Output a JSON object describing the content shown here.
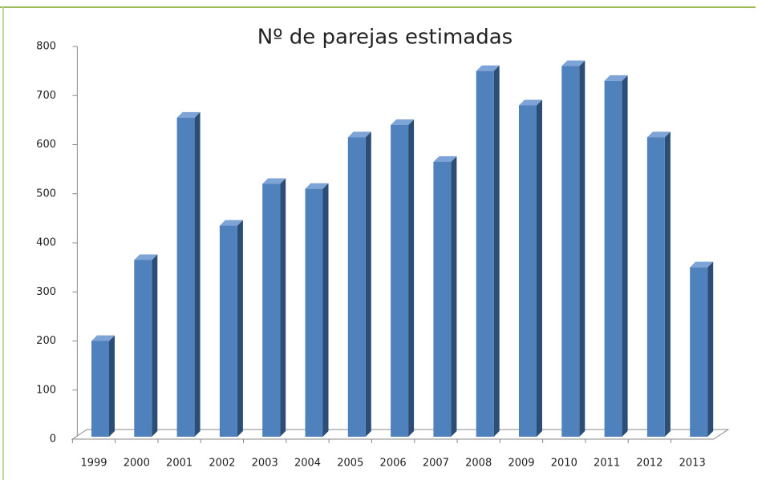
{
  "chart_data": {
    "type": "bar3d",
    "title": "Nº de parejas estimadas",
    "categories": [
      "1999",
      "2000",
      "2001",
      "2002",
      "2003",
      "2004",
      "2005",
      "2006",
      "2007",
      "2008",
      "2009",
      "2010",
      "2011",
      "2012",
      "2013"
    ],
    "values": [
      200,
      365,
      655,
      435,
      520,
      510,
      615,
      640,
      565,
      750,
      680,
      760,
      730,
      615,
      350
    ],
    "color": "#4f81bd",
    "ylim": [
      0,
      800
    ],
    "yticks": [
      0,
      100,
      200,
      300,
      400,
      500,
      600,
      700,
      800
    ]
  }
}
